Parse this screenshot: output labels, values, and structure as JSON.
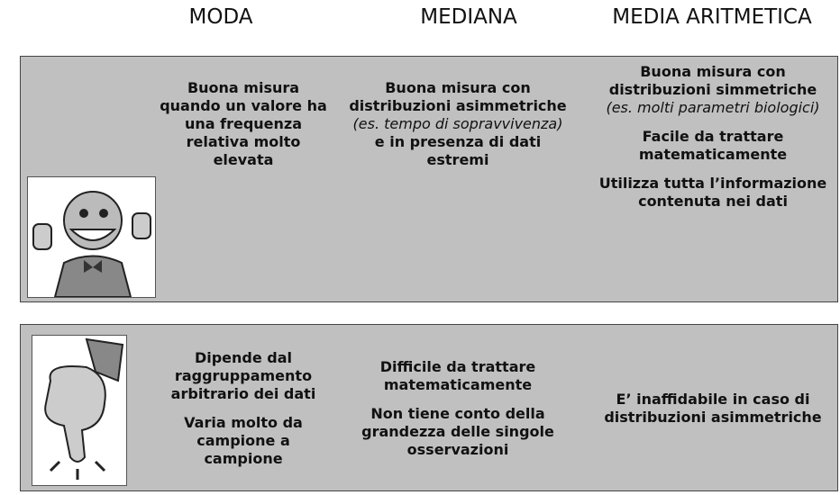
{
  "headers": [
    "MODA",
    "MEDIANA",
    "MEDIA ARITMETICA"
  ],
  "rows": [
    {
      "cells": [
        [
          [
            {
              "text": "Buona misura quando un valore ha una frequenza relativa molto elevata"
            }
          ]
        ],
        [
          [
            {
              "text": "Buona misura con distribuzioni asimmetriche "
            },
            {
              "text": "(es. tempo di sopravvivenza)",
              "italic": true
            },
            {
              "text": " e in presenza di dati estremi"
            }
          ]
        ],
        [
          [
            {
              "text": "Buona misura con distribuzioni simmetriche "
            },
            {
              "text": "(es. molti parametri biologici)",
              "italic": true
            }
          ],
          [
            {
              "text": "Facile da trattare matematicamente"
            }
          ],
          [
            {
              "text": "Utilizza tutta l’informazione contenuta nei dati"
            }
          ]
        ]
      ]
    },
    {
      "cells": [
        [
          [
            {
              "text": "Dipende dal raggruppamento arbitrario dei dati"
            }
          ],
          [
            {
              "text": "Varia molto da campione a campione"
            }
          ]
        ],
        [
          [
            {
              "text": "Difficile da trattare matematicamente"
            }
          ],
          [
            {
              "text": "Non tiene conto della grandezza delle singole osservazioni"
            }
          ]
        ],
        [
          [
            {
              "text": "E’ inaffidabile in caso di distribuzioni asimmetriche"
            }
          ]
        ]
      ]
    }
  ]
}
